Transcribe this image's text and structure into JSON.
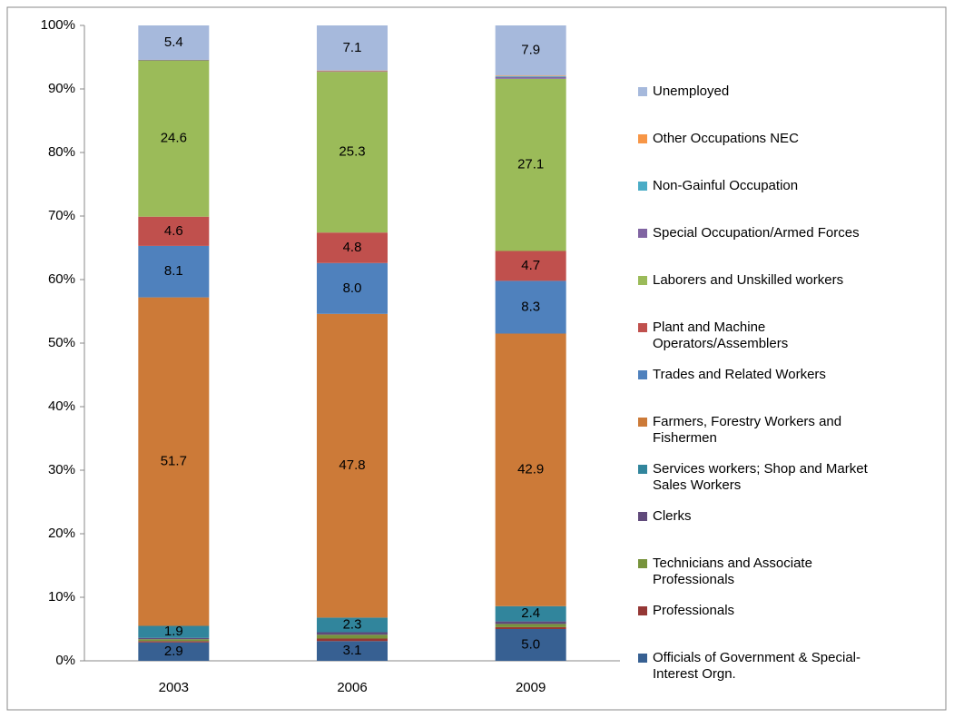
{
  "chart_data": {
    "type": "stacked_bar",
    "categories": [
      "2003",
      "2006",
      "2009"
    ],
    "ylim": [
      0,
      100
    ],
    "yticks": [
      {
        "value": 0,
        "label": "0%"
      },
      {
        "value": 10,
        "label": "10%"
      },
      {
        "value": 20,
        "label": "20%"
      },
      {
        "value": 30,
        "label": "30%"
      },
      {
        "value": 40,
        "label": "40%"
      },
      {
        "value": 50,
        "label": "50%"
      },
      {
        "value": 60,
        "label": "60%"
      },
      {
        "value": 70,
        "label": "70%"
      },
      {
        "value": 80,
        "label": "80%"
      },
      {
        "value": 90,
        "label": "90%"
      },
      {
        "value": 100,
        "label": "100%"
      }
    ],
    "grid": false,
    "legend": "right",
    "series": [
      {
        "name": "Officials of Government & Special-Interest Orgn.",
        "color": "#376092",
        "values": [
          2.9,
          3.1,
          5.0
        ],
        "value_labels": [
          "2.9",
          "3.1",
          "5.0"
        ]
      },
      {
        "name": "Professionals",
        "color": "#953735",
        "values": [
          0.2,
          0.4,
          0.3
        ]
      },
      {
        "name": "Technicians and Associate Professionals",
        "color": "#77933c",
        "values": [
          0.3,
          0.6,
          0.5
        ]
      },
      {
        "name": "Clerks",
        "color": "#604a7b",
        "values": [
          0.2,
          0.4,
          0.4
        ]
      },
      {
        "name": "Services workers; Shop and Market Sales Workers",
        "color": "#31859c",
        "values": [
          1.9,
          2.3,
          2.4
        ],
        "value_labels": [
          "1.9",
          "2.3",
          "2.4"
        ]
      },
      {
        "name": "Farmers, Forestry Workers and Fishermen",
        "color": "#cc7a38",
        "values": [
          51.7,
          47.8,
          42.9
        ],
        "value_labels": [
          "51.7",
          "47.8",
          "42.9"
        ]
      },
      {
        "name": "Trades and Related Workers",
        "color": "#4f81bd",
        "values": [
          8.1,
          8.0,
          8.3
        ],
        "value_labels": [
          "8.1",
          "8.0",
          "8.3"
        ]
      },
      {
        "name": "Plant and Machine Operators/Assemblers",
        "color": "#c0504d",
        "values": [
          4.6,
          4.8,
          4.7
        ],
        "value_labels": [
          "4.6",
          "4.8",
          "4.7"
        ]
      },
      {
        "name": "Laborers and Unskilled workers",
        "color": "#9bbb59",
        "values": [
          24.6,
          25.3,
          27.1
        ],
        "value_labels": [
          "24.6",
          "25.3",
          "27.1"
        ]
      },
      {
        "name": "Special Occupation/Armed Forces",
        "color": "#8064a2",
        "values": [
          0.1,
          0.1,
          0.3
        ]
      },
      {
        "name": "Non-Gainful Occupation",
        "color": "#4bacc6",
        "values": [
          0,
          0,
          0.1
        ]
      },
      {
        "name": "Other Occupations NEC",
        "color": "#f79646",
        "values": [
          0,
          0.1,
          0.1
        ]
      },
      {
        "name": "Unemployed",
        "color": "#a6b9dc",
        "values": [
          5.4,
          7.1,
          7.9
        ],
        "value_labels": [
          "5.4",
          "7.1",
          "7.9"
        ]
      }
    ]
  }
}
